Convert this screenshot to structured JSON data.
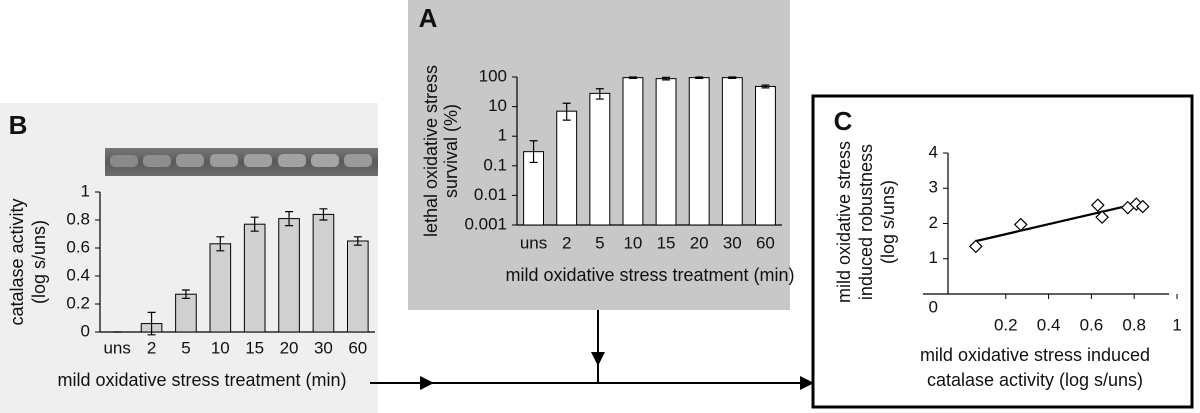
{
  "chart_data": [
    {
      "type": "bar",
      "panel": "A",
      "yscale": "log",
      "ylabel": [
        "lethal oxidative stress",
        "survival (%)"
      ],
      "xlabel": "mild oxidative stress treatment (min)",
      "categories": [
        "uns",
        "2",
        "5",
        "10",
        "15",
        "20",
        "30",
        "60"
      ],
      "values": [
        0.3,
        7,
        28,
        95,
        88,
        95,
        95,
        48
      ],
      "error_bounds": [
        [
          0.13,
          0.7
        ],
        [
          3.5,
          13
        ],
        [
          18,
          40
        ],
        [
          90,
          100
        ],
        [
          80,
          97
        ],
        [
          90,
          100
        ],
        [
          90,
          100
        ],
        [
          43,
          53
        ]
      ],
      "color": "#ffffff",
      "ylim": [
        0.001,
        100
      ],
      "yticks": [
        100,
        10,
        1,
        0.1,
        0.01,
        0.001
      ]
    },
    {
      "type": "bar",
      "panel": "B",
      "ylabel": [
        "catalase activity",
        "(log s/uns)"
      ],
      "xlabel": "mild oxidative stress treatment (min)",
      "categories": [
        "uns",
        "2",
        "5",
        "10",
        "15",
        "20",
        "30",
        "60"
      ],
      "values": [
        0,
        0.06,
        0.27,
        0.63,
        0.77,
        0.81,
        0.84,
        0.65
      ],
      "errors": [
        0,
        0.08,
        0.03,
        0.05,
        0.05,
        0.05,
        0.04,
        0.03
      ],
      "color": "#d0d0d0",
      "ylim": [
        0,
        1
      ],
      "yticks": [
        0,
        0.2,
        0.4,
        0.6,
        0.8,
        1
      ]
    },
    {
      "type": "scatter",
      "panel": "C",
      "ylabel": [
        "mild oxidative stress",
        "induced robustness",
        "(log s/uns)"
      ],
      "xlabel": [
        "mild oxidative stress induced",
        "catalase activity (log s/uns)"
      ],
      "x": [
        0.06,
        0.27,
        0.63,
        0.65,
        0.77,
        0.81,
        0.84
      ],
      "values": [
        1.35,
        1.97,
        2.52,
        2.18,
        2.45,
        2.55,
        2.48
      ],
      "trendline": {
        "x": [
          0.06,
          0.84
        ],
        "y": [
          1.5,
          2.6
        ]
      },
      "color": "#ffffff",
      "xlim": [
        -0.07,
        1
      ],
      "xticks": [
        0.2,
        0.4,
        0.6,
        0.8,
        1
      ],
      "ylim": [
        0,
        4
      ],
      "yticks": [
        0,
        1,
        2,
        3,
        4
      ]
    }
  ]
}
